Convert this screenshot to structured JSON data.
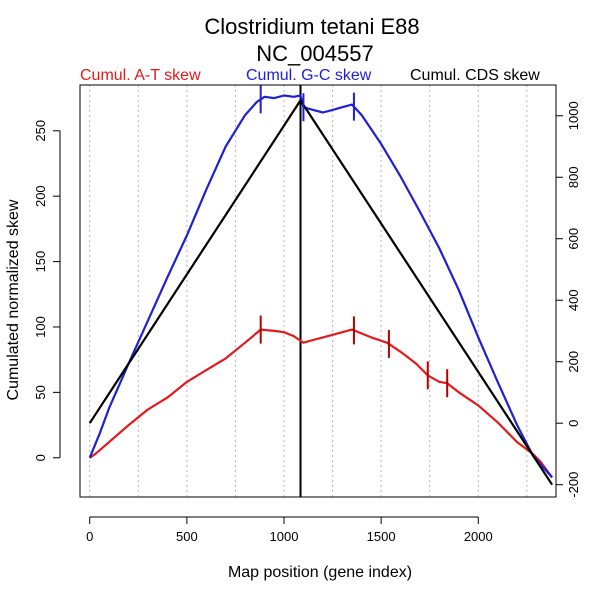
{
  "chart_data": {
    "type": "line",
    "title": "Clostridium tetani E88",
    "subtitle": "NC_004557",
    "xlabel": "Map position (gene index)",
    "ylabel": "Cumulated normalized skew",
    "xlim": [
      -50,
      2400
    ],
    "ylim": [
      -30,
      285
    ],
    "y2lim": [
      -240,
      1100
    ],
    "x_ticks": [
      0,
      500,
      1000,
      1500,
      2000
    ],
    "y_ticks": [
      0,
      50,
      100,
      150,
      200,
      250
    ],
    "y2_ticks": [
      -200,
      0,
      200,
      400,
      600,
      800,
      1000
    ],
    "vertical_gridlines": [
      0,
      250,
      500,
      750,
      1000,
      1250,
      1500,
      1750,
      2000,
      2250
    ],
    "origin_line_x": 1085,
    "legend": [
      {
        "label": "Cumul. A-T skew",
        "color": "#e31a1c"
      },
      {
        "label": "Cumul. G-C skew",
        "color": "#1f1fd6"
      },
      {
        "label": "Cumul. CDS skew",
        "color": "#000000"
      }
    ],
    "series": [
      {
        "name": "Cumul. A-T skew",
        "axis": "left",
        "color": "#e31a1c",
        "x": [
          0,
          30,
          100,
          200,
          300,
          400,
          500,
          600,
          700,
          800,
          880,
          950,
          1000,
          1050,
          1100,
          1150,
          1200,
          1300,
          1350,
          1400,
          1450,
          1530,
          1600,
          1680,
          1740,
          1800,
          1840,
          1900,
          2000,
          2100,
          2200,
          2280,
          2320,
          2380
        ],
        "values": [
          0,
          3,
          12,
          25,
          37,
          46,
          58,
          67,
          76,
          88,
          98,
          97,
          96,
          93,
          88,
          90,
          92,
          96,
          98,
          95,
          92,
          88,
          81,
          72,
          63,
          58,
          57,
          50,
          40,
          27,
          12,
          3,
          -3,
          -15
        ]
      },
      {
        "name": "Cumul. G-C skew",
        "axis": "left",
        "color": "#1f1fd6",
        "x": [
          0,
          50,
          100,
          200,
          300,
          400,
          500,
          600,
          700,
          800,
          860,
          900,
          950,
          1000,
          1050,
          1085,
          1100,
          1150,
          1200,
          1250,
          1300,
          1350,
          1400,
          1500,
          1600,
          1700,
          1800,
          1900,
          2000,
          2100,
          2200,
          2280,
          2320,
          2380
        ],
        "values": [
          0,
          18,
          38,
          72,
          105,
          138,
          170,
          205,
          238,
          262,
          272,
          276,
          275,
          277,
          276,
          277,
          268,
          266,
          264,
          266,
          268,
          270,
          262,
          240,
          215,
          188,
          160,
          128,
          92,
          58,
          25,
          2,
          -5,
          -15
        ]
      },
      {
        "name": "Cumul. CDS skew",
        "axis": "right",
        "color": "#000000",
        "x": [
          0,
          1085,
          2380
        ],
        "values": [
          0,
          1050,
          -200
        ]
      }
    ],
    "tick_marks": [
      {
        "series": "Cumul. A-T skew",
        "x": [
          880,
          1360,
          1540,
          1740,
          1840
        ]
      },
      {
        "series": "Cumul. G-C skew",
        "x": [
          880,
          1100,
          1360
        ]
      }
    ]
  }
}
